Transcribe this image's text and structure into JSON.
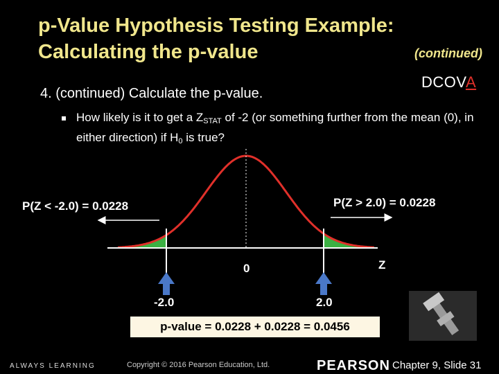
{
  "title": {
    "line1": "p-Value Hypothesis Testing Example:",
    "line2": "Calculating the p-value",
    "continued": "(continued)"
  },
  "dcova": {
    "prefix": "DCOV",
    "highlight": "A"
  },
  "step_text": "4. (continued)  Calculate the p-value.",
  "bullet": {
    "part1": "How likely is it to get a Z",
    "sub1": "STAT",
    "part2": " of -2 (or something further from the mean (0), in either direction) if H",
    "sub2": "0",
    "part3": " is true?"
  },
  "diagram": {
    "left_prob": "P(Z < -2.0) = 0.0228",
    "right_prob": "P(Z > 2.0) = 0.0228",
    "center_label": "0",
    "axis_label": "Z",
    "left_crit": "-2.0",
    "right_crit": "2.0"
  },
  "pvalue_text": "p-value = 0.0228 + 0.0228 = 0.0456",
  "footer": {
    "left": "ALWAYS LEARNING",
    "copyright": "Copyright © 2016 Pearson Education, Ltd.",
    "brand": "PEARSON",
    "slide": "Chapter 9, Slide 31"
  },
  "colors": {
    "title": "#f0e68c",
    "curve": "#e0302a",
    "tail_fill": "#3cb043",
    "arrow": "#4a78c8"
  }
}
